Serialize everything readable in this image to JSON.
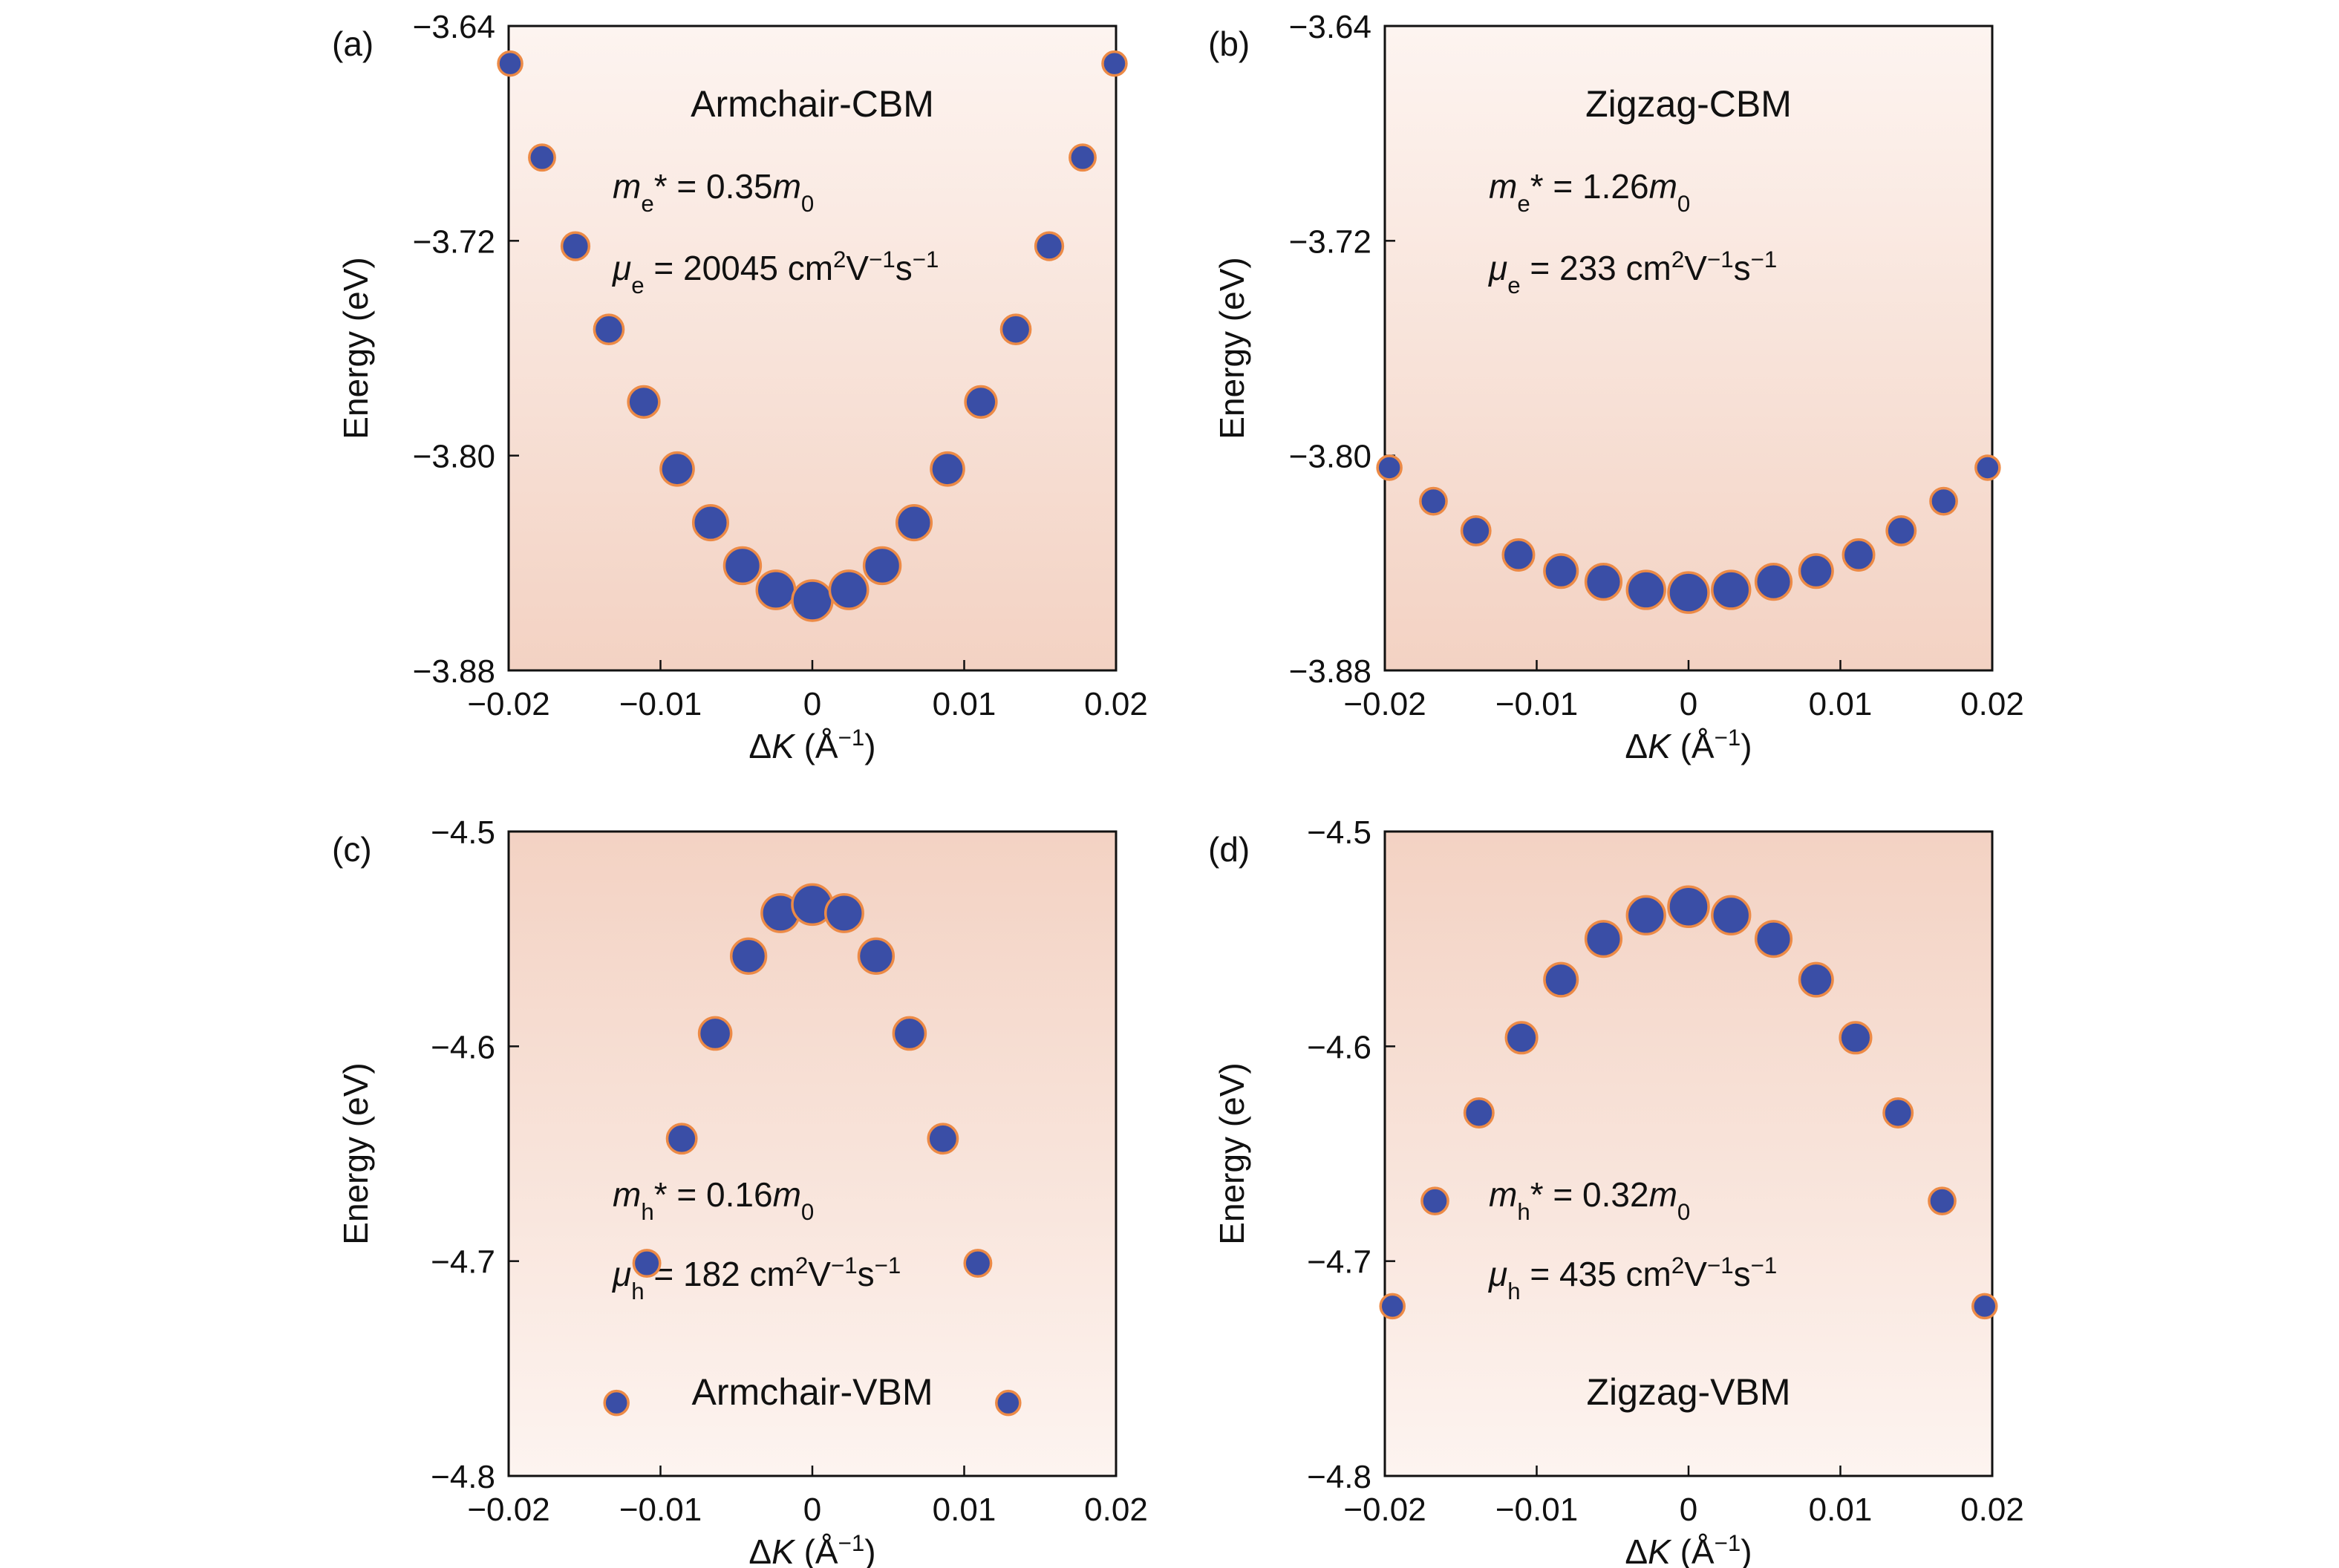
{
  "chart_data": [
    {
      "type": "scatter",
      "panel": "(a)",
      "title": "Armchair-CBM",
      "mass": [
        "m",
        "e",
        "* = 0.35",
        "m",
        "0"
      ],
      "mobility": [
        "μ",
        "e",
        " = 20045 cm",
        "2",
        "V",
        "−1",
        "s",
        "−1"
      ],
      "x_label": [
        "Δ",
        "K",
        " (Å",
        "−1",
        ")"
      ],
      "y_label": "Energy (eV)",
      "x": [
        -0.0199,
        -0.0178,
        -0.0156,
        -0.0134,
        -0.0111,
        -0.0089,
        -0.0067,
        -0.0046,
        -0.0024,
        0,
        0.0024,
        0.0046,
        0.0067,
        0.0089,
        0.0111,
        0.0134,
        0.0156,
        0.0178,
        0.0199
      ],
      "y": [
        -3.654,
        -3.689,
        -3.722,
        -3.753,
        -3.78,
        -3.805,
        -3.825,
        -3.841,
        -3.85,
        -3.854,
        -3.85,
        -3.841,
        -3.825,
        -3.805,
        -3.78,
        -3.753,
        -3.722,
        -3.689,
        -3.654
      ],
      "xlim": [
        -0.02,
        0.02
      ],
      "ylim": [
        -3.88,
        -3.64
      ],
      "xticks": [
        {
          "value": -0.02,
          "label": "−0.02"
        },
        {
          "value": -0.01,
          "label": "−0.01"
        },
        0,
        0.01,
        0.02
      ],
      "yticks": [
        {
          "value": -3.88,
          "label": "−3.88"
        },
        {
          "value": -3.8,
          "label": "−3.80"
        },
        {
          "value": -3.72,
          "label": "−3.72"
        },
        {
          "value": -3.64,
          "label": "−3.64"
        }
      ],
      "marker_color": "#3a4ea6",
      "edge_color": "#ec8a46",
      "title_color": "#d9262e"
    },
    {
      "type": "scatter",
      "panel": "(b)",
      "title": "Zigzag-CBM",
      "mass": [
        "m",
        "e",
        "* = 1.26",
        "m",
        "0"
      ],
      "mobility": [
        "μ",
        "e",
        " = 233 cm",
        "2",
        "V",
        "−1",
        "s",
        "−1"
      ],
      "x_label": [
        "Δ",
        "K",
        " (Å",
        "−1",
        ")"
      ],
      "y_label": "Energy (eV)",
      "x": [
        -0.0197,
        -0.0168,
        -0.014,
        -0.0112,
        -0.0084,
        -0.0056,
        -0.0028,
        0,
        0.0028,
        0.0056,
        0.0084,
        0.0112,
        0.014,
        0.0168,
        0.0197
      ],
      "y": [
        -3.8045,
        -3.817,
        -3.828,
        -3.837,
        -3.843,
        -3.847,
        -3.85,
        -3.851,
        -3.85,
        -3.847,
        -3.843,
        -3.837,
        -3.828,
        -3.817,
        -3.8045
      ],
      "xlim": [
        -0.02,
        0.02
      ],
      "ylim": [
        -3.88,
        -3.64
      ],
      "xticks": [
        {
          "value": -0.02,
          "label": "−0.02"
        },
        {
          "value": -0.01,
          "label": "−0.01"
        },
        0,
        0.01,
        0.02
      ],
      "yticks": [
        {
          "value": -3.88,
          "label": "−3.88"
        },
        {
          "value": -3.8,
          "label": "−3.80"
        },
        {
          "value": -3.72,
          "label": "−3.72"
        },
        {
          "value": -3.64,
          "label": "−3.64"
        }
      ],
      "marker_color": "#3a4ea6",
      "edge_color": "#ec8a46",
      "title_color": "#d9262e"
    },
    {
      "type": "scatter",
      "panel": "(c)",
      "title": "Armchair-VBM",
      "mass": [
        "m",
        "h",
        "* = 0.16",
        "m",
        "0"
      ],
      "mobility": [
        "μ",
        "h",
        " = 182 cm",
        "2",
        "V",
        "−1",
        "s",
        "−1"
      ],
      "x_label": [
        "Δ",
        "K",
        " (Å",
        "−1",
        ")"
      ],
      "y_label": "Energy (eV)",
      "x": [
        -0.0129,
        -0.0109,
        -0.0086,
        -0.0064,
        -0.0042,
        -0.0021,
        0,
        0.0021,
        0.0042,
        0.0064,
        0.0086,
        0.0109,
        0.0129
      ],
      "y": [
        -4.766,
        -4.701,
        -4.643,
        -4.594,
        -4.558,
        -4.538,
        -4.534,
        -4.538,
        -4.558,
        -4.594,
        -4.643,
        -4.701,
        -4.766
      ],
      "xlim": [
        -0.02,
        0.02
      ],
      "ylim": [
        -4.8,
        -4.5
      ],
      "xticks": [
        {
          "value": -0.02,
          "label": "−0.02"
        },
        {
          "value": -0.01,
          "label": "−0.01"
        },
        0,
        0.01,
        0.02
      ],
      "yticks": [
        {
          "value": -4.8,
          "label": "−4.8"
        },
        {
          "value": -4.7,
          "label": "−4.7"
        },
        {
          "value": -4.6,
          "label": "−4.6"
        },
        {
          "value": -4.5,
          "label": "−4.5"
        }
      ],
      "marker_color": "#3a4ea6",
      "edge_color": "#ec8a46",
      "title_color": "#d9262e"
    },
    {
      "type": "scatter",
      "panel": "(d)",
      "title": "Zigzag-VBM",
      "mass": [
        "m",
        "h",
        "* = 0.32",
        "m",
        "0"
      ],
      "mobility": [
        "μ",
        "h",
        " = 435 cm",
        "2",
        "V",
        "−1",
        "s",
        "−1"
      ],
      "x_label": [
        "Δ",
        "K",
        " (Å",
        "−1",
        ")"
      ],
      "y_label": "Energy (eV)",
      "x": [
        -0.0195,
        -0.0167,
        -0.0138,
        -0.011,
        -0.0084,
        -0.0056,
        -0.0028,
        0,
        0.0028,
        0.0056,
        0.0084,
        0.011,
        0.0138,
        0.0167,
        0.0195
      ],
      "y": [
        -4.721,
        -4.672,
        -4.631,
        -4.596,
        -4.569,
        -4.55,
        -4.539,
        -4.535,
        -4.539,
        -4.55,
        -4.569,
        -4.596,
        -4.631,
        -4.672,
        -4.721
      ],
      "xlim": [
        -0.02,
        0.02
      ],
      "ylim": [
        -4.8,
        -4.5
      ],
      "xticks": [
        {
          "value": -0.02,
          "label": "−0.02"
        },
        {
          "value": -0.01,
          "label": "−0.01"
        },
        0,
        0.01,
        0.02
      ],
      "yticks": [
        {
          "value": -4.8,
          "label": "−4.8"
        },
        {
          "value": -4.7,
          "label": "−4.7"
        },
        {
          "value": -4.6,
          "label": "−4.6"
        },
        {
          "value": -4.5,
          "label": "−4.5"
        }
      ],
      "marker_color": "#3a4ea6",
      "edge_color": "#ec8a46",
      "title_color": "#d9262e"
    }
  ]
}
